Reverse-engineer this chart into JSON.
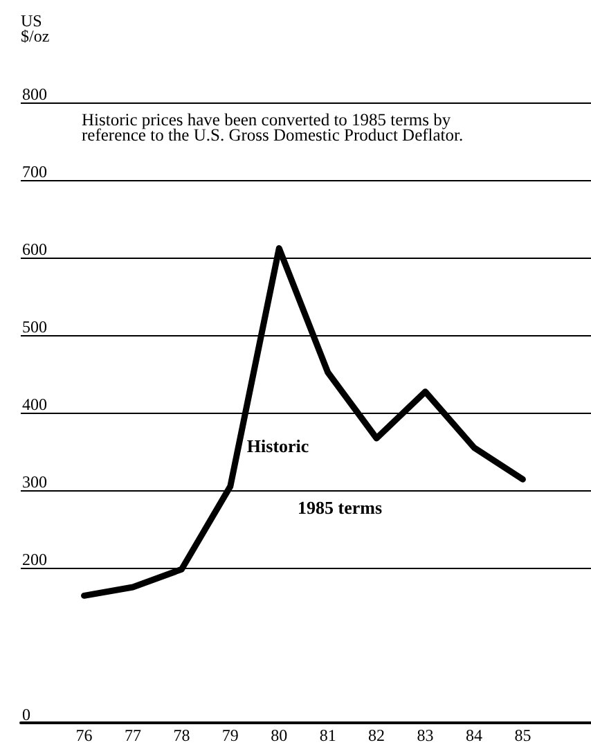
{
  "chart_data": {
    "type": "line",
    "ylabel": "US\n$/oz",
    "annotations": [
      "Historic prices have been converted to 1985 terms by\nreference to the U.S. Gross Domestic Product Deflator.",
      "1985 terms"
    ],
    "x": [
      76,
      77,
      78,
      79,
      80,
      81,
      82,
      83,
      84,
      85
    ],
    "series": [
      {
        "name": "Historic",
        "color": "#000000",
        "values": [
          164,
          175,
          198,
          305,
          612,
          452,
          367,
          427,
          355,
          314
        ]
      }
    ],
    "xlim": [
      74.7,
      86.4
    ],
    "xticks": [
      76,
      77,
      78,
      79,
      80,
      81,
      82,
      83,
      84,
      85
    ],
    "ylim": [
      0,
      800
    ],
    "yticks": [
      0,
      200,
      300,
      400,
      500,
      600,
      700,
      800
    ],
    "grid": "y",
    "marker": "none",
    "line_style": "solid"
  }
}
